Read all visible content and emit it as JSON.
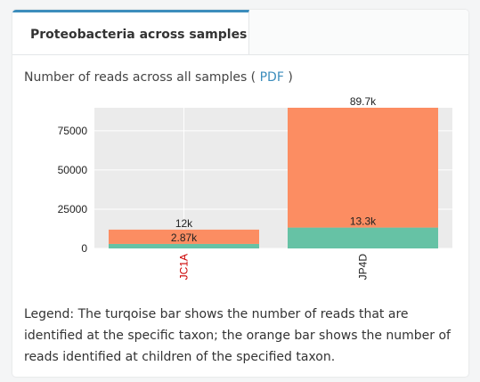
{
  "tab": {
    "label": "Proteobacteria across samples"
  },
  "subtitle": {
    "text_before": "Number of reads across all samples (",
    "link_label": "PDF",
    "text_after": ")"
  },
  "colors": {
    "specific": "#66c2a5",
    "children": "#fc8d62",
    "sample_label_1": "#cc0000",
    "sample_label_2": "#222222"
  },
  "chart_data": {
    "type": "bar",
    "stacked": true,
    "categories": [
      "JC1A",
      "JP4D"
    ],
    "series": [
      {
        "values": [
          2870,
          13300
        ],
        "labels": [
          "2.87k",
          "13.3k"
        ]
      },
      {
        "values": [
          9130,
          76400
        ]
      }
    ],
    "total_labels": [
      "12k",
      "89.7k"
    ],
    "y_ticks": [
      0,
      25000,
      50000,
      75000
    ],
    "y_tick_labels": [
      "0",
      "25000",
      "50000",
      "75000"
    ],
    "ylim": [
      0,
      89700
    ],
    "grid": true,
    "xlabel": "",
    "ylabel": ""
  },
  "legend": {
    "text": "Legend: The turqoise bar shows the number of reads that are identified at the specific taxon; the orange bar shows the number of reads identified at children of the specified taxon."
  }
}
